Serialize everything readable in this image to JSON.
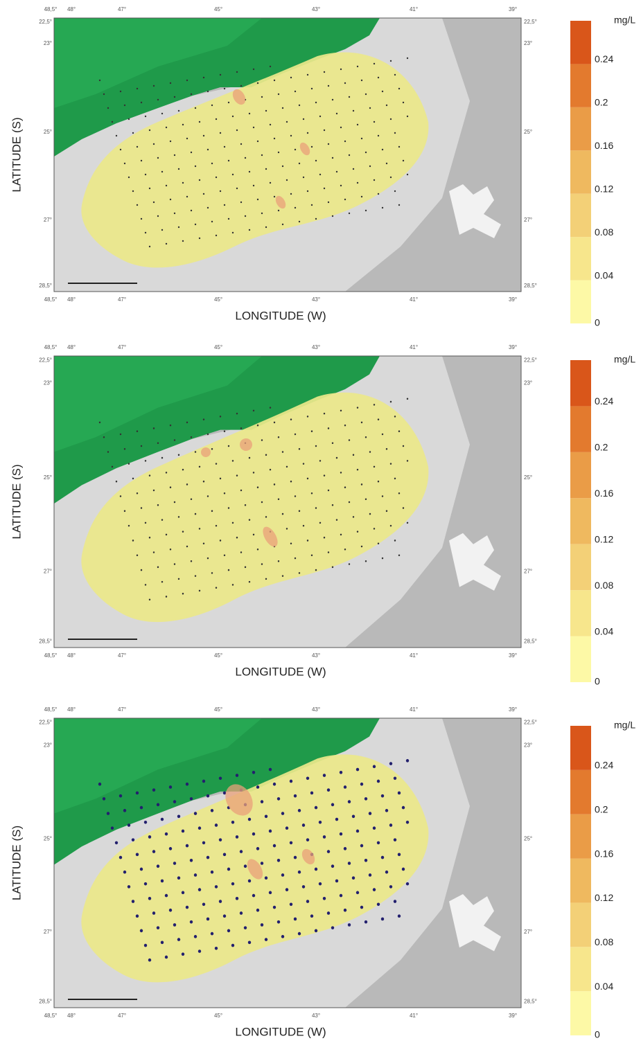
{
  "panels": [
    {
      "map": {
        "x_labels_top": [
          "48,5°",
          "48°",
          "47°",
          "45°",
          "43°",
          "41°",
          "39°"
        ],
        "x_labels_bottom": [
          "48,5°",
          "48°",
          "47°",
          "45°",
          "43°",
          "41°",
          "39°"
        ],
        "y_labels_left": [
          "22,5°",
          "23°",
          "25°",
          "27°",
          "28,5°"
        ],
        "y_labels_right": [
          "22,5°",
          "23°",
          "25°",
          "27°",
          "28,5°"
        ],
        "x_axis_title": "LONGITUDE (W)",
        "y_axis_title": "LATITUDE (S)"
      },
      "legend": {
        "unit": "mg/L",
        "labels": [
          "0",
          "0.04",
          "0.08",
          "0.12",
          "0.16",
          "0.2",
          "0.24"
        ],
        "colors": [
          "#fdf9a6",
          "#f7e68c",
          "#f3d077",
          "#efb95f",
          "#ea9c47",
          "#e37a2e",
          "#d9561a"
        ]
      }
    },
    {
      "map": {
        "x_labels_top": [
          "48,5°",
          "48°",
          "47°",
          "45°",
          "43°",
          "41°",
          "39°"
        ],
        "x_labels_bottom": [
          "48,5°",
          "48°",
          "47°",
          "45°",
          "43°",
          "41°",
          "39°"
        ],
        "y_labels_left": [
          "22,5°",
          "23°",
          "25°",
          "27°",
          "28,5°"
        ],
        "y_labels_right": [
          "22,5°",
          "23°",
          "25°",
          "27°",
          "28,5°"
        ],
        "x_axis_title": "LONGITUDE (W)",
        "y_axis_title": "LATITUDE (S)"
      },
      "legend": {
        "unit": "mg/L",
        "labels": [
          "0",
          "0.04",
          "0.08",
          "0.12",
          "0.16",
          "0.2",
          "0.24"
        ],
        "colors": [
          "#fdf9a6",
          "#f7e68c",
          "#f3d077",
          "#efb95f",
          "#ea9c47",
          "#e37a2e",
          "#d9561a"
        ]
      }
    },
    {
      "map": {
        "x_labels_top": [
          "48,5°",
          "48°",
          "47°",
          "45°",
          "43°",
          "41°",
          "39°"
        ],
        "x_labels_bottom": [
          "48,5°",
          "48°",
          "47°",
          "45°",
          "43°",
          "41°",
          "39°"
        ],
        "y_labels_left": [
          "22,5°",
          "23°",
          "25°",
          "27°",
          "28,5°"
        ],
        "y_labels_right": [
          "22,5°",
          "23°",
          "25°",
          "27°",
          "28,5°"
        ],
        "x_axis_title": "LONGITUDE (W)",
        "y_axis_title": "LATITUDE (S)"
      },
      "legend": {
        "unit": "mg/L",
        "labels": [
          "0",
          "0.04",
          "0.08",
          "0.12",
          "0.16",
          "0.2",
          "0.24"
        ],
        "colors": [
          "#fdf9a6",
          "#f7e68c",
          "#f3d077",
          "#efb95f",
          "#ea9c47",
          "#e37a2e",
          "#d9561a"
        ]
      }
    }
  ]
}
